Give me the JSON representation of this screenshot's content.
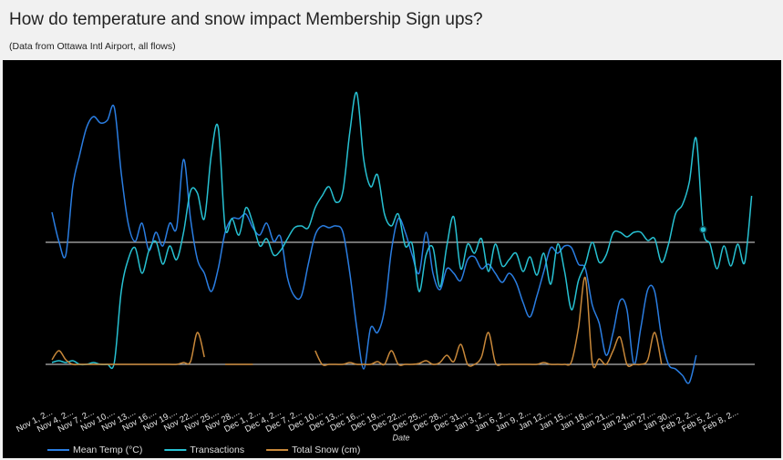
{
  "chart_data": {
    "type": "line",
    "title": "How do temperature and snow impact Membership Sign ups?",
    "subtitle": "(Data from Ottawa Intl Airport, all flows)",
    "x_label": "Date",
    "legend": "bottom",
    "categories": [
      "Nov 1, 2...",
      null,
      null,
      "Nov 4, 2...",
      null,
      null,
      "Nov 7, 2...",
      null,
      null,
      "Nov 10,...",
      null,
      null,
      "Nov 13,...",
      null,
      null,
      "Nov 16,...",
      null,
      null,
      "Nov 19,...",
      null,
      null,
      "Nov 22,...",
      null,
      null,
      "Nov 25,...",
      null,
      null,
      "Nov 28,...",
      null,
      null,
      "Dec 1, 2...",
      null,
      null,
      "Dec 4, 2...",
      null,
      null,
      "Dec 7, 2...",
      null,
      null,
      "Dec 10,...",
      null,
      null,
      "Dec 13,...",
      null,
      null,
      "Dec 16,...",
      null,
      null,
      "Dec 19,...",
      null,
      null,
      "Dec 22,...",
      null,
      null,
      "Dec 25,...",
      null,
      null,
      "Dec 28,...",
      null,
      null,
      "Dec 31,...",
      null,
      null,
      "Jan 3, 2...",
      null,
      null,
      "Jan 6, 2...",
      null,
      null,
      "Jan 9, 2...",
      null,
      null,
      "Jan 12,...",
      null,
      null,
      "Jan 15,...",
      null,
      null,
      "Jan 18,...",
      null,
      null,
      "Jan 21,...",
      null,
      null,
      "Jan 24,...",
      null,
      null,
      "Jan 27,...",
      null,
      null,
      "Jan 30,...",
      null,
      null,
      "Feb 2, 2...",
      null,
      null,
      "Feb 5, 2...",
      null,
      null,
      "Feb 8, 2...",
      null,
      null
    ],
    "ylim": [
      -17.4,
      19.6
    ],
    "y2lim": [
      -4,
      33
    ],
    "series": [
      {
        "name": "Mean Temp (°C)",
        "color": "#2a7de1",
        "values": [
          3.3,
          0.1,
          -1.4,
          6.1,
          9.6,
          12.6,
          13.8,
          13.1,
          13.4,
          14.8,
          7.6,
          2.1,
          0.1,
          2.1,
          -0.9,
          1.1,
          -0.4,
          2.1,
          1.6,
          9.1,
          2.6,
          -1.9,
          -3.4,
          -5.4,
          -2.9,
          1.1,
          2.6,
          2.6,
          3.1,
          1.6,
          0.8,
          2.1,
          0.1,
          0.6,
          -3.9,
          -5.9,
          -5.9,
          -2.4,
          0.8,
          1.8,
          1.6,
          1.8,
          1.1,
          -3.4,
          -9.4,
          -13.9,
          -9.4,
          -9.9,
          -7.4,
          -0.9,
          2.6,
          1.1,
          -1.4,
          -3.4,
          1.1,
          -3.4,
          -5.2,
          -2.9,
          -3.4,
          -4.2,
          -1.9,
          -1.6,
          -2.9,
          -2.4,
          -3.4,
          -4.4,
          -3.4,
          -4.4,
          -6.6,
          -8.2,
          -5.9,
          -3.2,
          -0.6,
          -1.2,
          -0.4,
          -0.6,
          -2.4,
          -2.9,
          -6.9,
          -8.9,
          -12.4,
          -9.9,
          -6.4,
          -7.4,
          -13.4,
          -9.4,
          -5.2,
          -5.4,
          -10.4,
          -13.4,
          -13.9,
          -14.6,
          -15.4,
          -12.4,
          null,
          null,
          null,
          null,
          null,
          null,
          null,
          null
        ]
      },
      {
        "name": "Transactions",
        "color": "#27c1d2",
        "axis": "y2",
        "values": [
          0.2,
          0.4,
          0.2,
          0.4,
          0,
          0,
          0.2,
          0,
          0,
          0.2,
          8,
          11.5,
          12.8,
          10,
          12.5,
          13.5,
          11,
          13,
          11.5,
          14.5,
          19,
          18.8,
          16,
          23,
          26,
          15,
          16,
          14.2,
          17.2,
          15.5,
          13,
          13.8,
          12,
          12.5,
          13.8,
          15,
          15.2,
          15,
          17.2,
          18.5,
          19.5,
          17.8,
          19,
          25.5,
          29.8,
          22.5,
          19.5,
          20.8,
          16.5,
          15.2,
          16.5,
          13,
          13.2,
          8,
          12,
          12.8,
          8.5,
          13,
          16.2,
          10.5,
          13.2,
          12.2,
          13.8,
          10.2,
          13.2,
          10.8,
          11.5,
          12.2,
          10.2,
          11.8,
          9.8,
          12.2,
          8.8,
          13.2,
          10.2,
          6,
          9.2,
          11,
          13.4,
          11.2,
          12,
          14.4,
          14.5,
          14,
          14.5,
          14.5,
          13.6,
          13.8,
          11.2,
          13.2,
          16.5,
          17.5,
          20,
          24.8,
          14.8,
          13.2,
          10.5,
          13,
          10.8,
          13.2,
          11.2,
          18.5
        ]
      },
      {
        "name": "Total Snow (cm)",
        "color": "#c8883a",
        "axis": "y2",
        "values": [
          0.5,
          1.5,
          0.5,
          0,
          0,
          0,
          0,
          0,
          0,
          0,
          0,
          0,
          0,
          0,
          0,
          0,
          0,
          0,
          0,
          0.2,
          0.3,
          3.5,
          0.8,
          null,
          null,
          0,
          0,
          0,
          0,
          0,
          null,
          null,
          null,
          null,
          null,
          null,
          null,
          null,
          1.5,
          0,
          0,
          0,
          0,
          0.2,
          0,
          0,
          0,
          0.3,
          0,
          1.5,
          0,
          0,
          0,
          0.1,
          0.4,
          0,
          0.2,
          1,
          0.3,
          2.2,
          0,
          0,
          0.8,
          3.5,
          0.2,
          0,
          0,
          0,
          0,
          0,
          0,
          0.2,
          0,
          0,
          0,
          0.3,
          4,
          9.5,
          0.2,
          0.6,
          0,
          1.5,
          3,
          0,
          0,
          0,
          0.5,
          3.5,
          0,
          null,
          null,
          null,
          null,
          null,
          null,
          null,
          null,
          null,
          null,
          null,
          null,
          null
        ]
      }
    ],
    "highlight": {
      "series": 1,
      "index": 94
    }
  }
}
